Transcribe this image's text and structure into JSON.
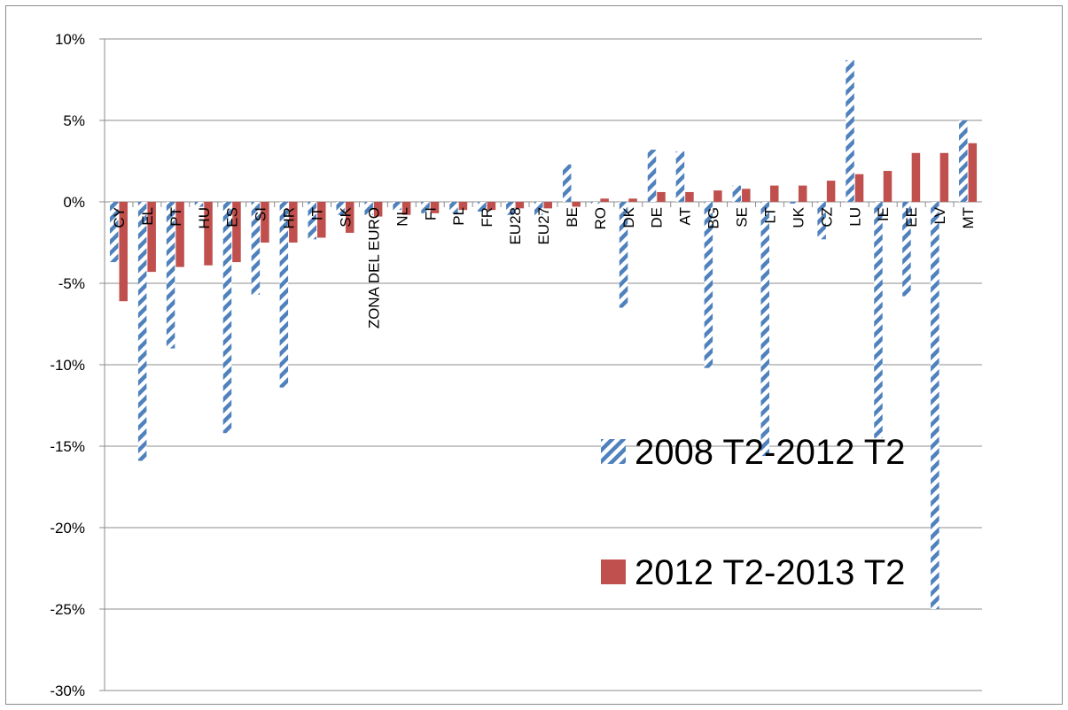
{
  "chart_data": {
    "type": "bar",
    "title": "",
    "xlabel": "",
    "ylabel": "",
    "ylim": [
      -30,
      10
    ],
    "yticks": [
      10,
      5,
      0,
      -5,
      -10,
      -15,
      -20,
      -25,
      -30
    ],
    "ytick_format": "%",
    "grid": true,
    "legend_position": "center-right, inside plot",
    "categories": [
      "CY",
      "EL",
      "PT",
      "HU",
      "ES",
      "SI",
      "HR",
      "IT",
      "SK",
      "ZONA DEL EURO",
      "NL",
      "FI",
      "PL",
      "FR",
      "EU28",
      "EU27",
      "BE",
      "RO",
      "DK",
      "DE",
      "AT",
      "BG",
      "SE",
      "LT",
      "UK",
      "CZ",
      "LU",
      "IE",
      "EE",
      "LV",
      "MT"
    ],
    "series": [
      {
        "name": "2008 T2-2012 T2",
        "pattern": "diagonal-stripes",
        "color": "#4f81bd",
        "values": [
          -3.7,
          -15.9,
          -9.0,
          -0.3,
          -14.2,
          -5.7,
          -11.4,
          -2.3,
          -0.8,
          -0.8,
          -0.5,
          -0.7,
          -0.7,
          -0.6,
          -0.8,
          -0.8,
          2.3,
          -0.1,
          -6.5,
          3.2,
          3.1,
          -10.2,
          1.0,
          -15.6,
          -0.1,
          -2.3,
          8.7,
          -14.5,
          -5.8,
          -25.0,
          5.0
        ]
      },
      {
        "name": "2012 T2-2013 T2",
        "color": "#c0504d",
        "values": [
          -6.1,
          -4.3,
          -4.0,
          -3.9,
          -3.7,
          -2.5,
          -2.5,
          -2.2,
          -1.9,
          -0.9,
          -0.8,
          -0.7,
          -0.5,
          -0.5,
          -0.4,
          -0.4,
          -0.3,
          0.2,
          0.2,
          0.6,
          0.6,
          0.7,
          0.8,
          1.0,
          1.0,
          1.3,
          1.7,
          1.9,
          3.0,
          3.0,
          3.6
        ]
      }
    ]
  },
  "colors": {
    "series1": "#4f81bd",
    "series2": "#c0504d",
    "grid": "#8c8c8c"
  }
}
